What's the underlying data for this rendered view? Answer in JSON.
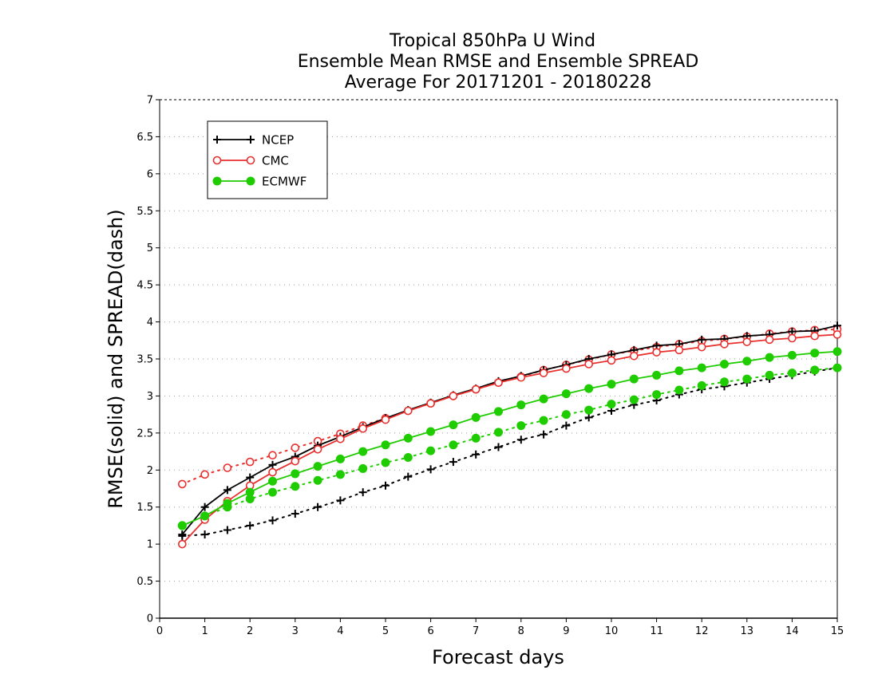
{
  "chart_data": {
    "type": "line",
    "title_lines": [
      "Tropical 850hPa U Wind",
      "Ensemble Mean RMSE and Ensemble SPREAD",
      "Average For 20171201 - 20180228"
    ],
    "xlabel": "Forecast days",
    "ylabel": "RMSE(solid) and SPREAD(dash)",
    "xlim": [
      0,
      15
    ],
    "ylim": [
      0,
      7
    ],
    "xticks": [
      "0",
      "1",
      "2",
      "3",
      "4",
      "5",
      "6",
      "7",
      "8",
      "9",
      "10",
      "11",
      "12",
      "13",
      "14",
      "15"
    ],
    "yticks": [
      "0",
      "0.5",
      "1",
      "1.5",
      "2",
      "2.5",
      "3",
      "3.5",
      "4",
      "4.5",
      "5",
      "5.5",
      "6",
      "6.5",
      "7"
    ],
    "grid": "horizontal dotted",
    "legend_position": "top-left",
    "x": [
      0.5,
      1,
      1.5,
      2,
      2.5,
      3,
      3.5,
      4,
      4.5,
      5,
      5.5,
      6,
      6.5,
      7,
      7.5,
      8,
      8.5,
      9,
      9.5,
      10,
      10.5,
      11,
      11.5,
      12,
      12.5,
      13,
      13.5,
      14,
      14.5,
      15
    ],
    "series": [
      {
        "name": "NCEP",
        "color": "#000000",
        "marker": "plus",
        "rmse": [
          1.13,
          1.5,
          1.73,
          1.9,
          2.07,
          2.18,
          2.33,
          2.45,
          2.58,
          2.7,
          2.81,
          2.91,
          3.01,
          3.1,
          3.2,
          3.27,
          3.35,
          3.42,
          3.5,
          3.56,
          3.62,
          3.68,
          3.7,
          3.76,
          3.77,
          3.81,
          3.83,
          3.87,
          3.88,
          3.95
        ],
        "spread": [
          1.11,
          1.13,
          1.19,
          1.25,
          1.32,
          1.41,
          1.5,
          1.59,
          1.7,
          1.79,
          1.91,
          2.01,
          2.11,
          2.21,
          2.31,
          2.41,
          2.48,
          2.6,
          2.71,
          2.8,
          2.88,
          2.94,
          3.02,
          3.09,
          3.13,
          3.18,
          3.23,
          3.28,
          3.33,
          3.38
        ]
      },
      {
        "name": "CMC",
        "color": "#e8302e",
        "marker": "open-circle",
        "rmse": [
          1.0,
          1.33,
          1.58,
          1.79,
          1.97,
          2.12,
          2.28,
          2.42,
          2.56,
          2.68,
          2.8,
          2.9,
          3.0,
          3.09,
          3.18,
          3.25,
          3.31,
          3.37,
          3.43,
          3.48,
          3.54,
          3.59,
          3.62,
          3.66,
          3.7,
          3.73,
          3.76,
          3.78,
          3.81,
          3.83
        ],
        "spread": [
          1.81,
          1.94,
          2.03,
          2.11,
          2.2,
          2.3,
          2.39,
          2.49,
          2.6,
          2.7,
          2.8,
          2.9,
          3.0,
          3.09,
          3.18,
          3.26,
          3.35,
          3.42,
          3.49,
          3.56,
          3.61,
          3.66,
          3.7,
          3.74,
          3.77,
          3.8,
          3.84,
          3.87,
          3.89,
          3.9
        ]
      },
      {
        "name": "ECMWF",
        "color": "#1fcc00",
        "marker": "filled-circle",
        "rmse": [
          1.25,
          1.38,
          1.55,
          1.7,
          1.85,
          1.95,
          2.05,
          2.15,
          2.25,
          2.34,
          2.43,
          2.52,
          2.61,
          2.71,
          2.79,
          2.88,
          2.96,
          3.03,
          3.1,
          3.16,
          3.23,
          3.28,
          3.34,
          3.38,
          3.43,
          3.47,
          3.52,
          3.55,
          3.58,
          3.6
        ],
        "spread": [
          1.25,
          1.38,
          1.5,
          1.61,
          1.7,
          1.78,
          1.86,
          1.94,
          2.02,
          2.1,
          2.17,
          2.26,
          2.34,
          2.43,
          2.51,
          2.6,
          2.67,
          2.75,
          2.81,
          2.89,
          2.95,
          3.02,
          3.08,
          3.14,
          3.19,
          3.23,
          3.28,
          3.31,
          3.35,
          3.38
        ]
      }
    ]
  }
}
